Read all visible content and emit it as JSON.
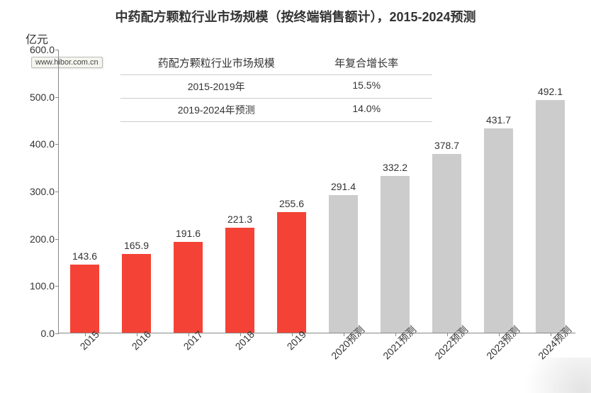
{
  "title": "中药配方颗粒行业市场规模（按终端销售额计），2015-2024预测",
  "y_unit": "亿元",
  "watermark_tooltip": "www.hibor.com.cn",
  "chart": {
    "type": "bar",
    "background_color": "#ffffff",
    "axis_color": "#888888",
    "ylim": [
      0,
      600
    ],
    "ytick_step": 100,
    "yticks": [
      "0.0",
      "100.0",
      "200.0",
      "300.0",
      "400.0",
      "500.0",
      "600.0"
    ],
    "y_fontsize": 14,
    "bar_width_ratio": 0.55,
    "label_fontsize": 14,
    "label_color": "#333333",
    "x_label_rotation": -45,
    "colors": {
      "actual": "#f44336",
      "forecast": "#cccccc"
    },
    "categories": [
      "2015",
      "2016",
      "2017",
      "2018",
      "2019",
      "2020预测",
      "2021预测",
      "2022预测",
      "2023预测",
      "2024预测"
    ],
    "values": [
      143.6,
      165.9,
      191.6,
      221.3,
      255.6,
      291.4,
      332.2,
      378.7,
      431.7,
      492.1
    ],
    "series_kind": [
      "actual",
      "actual",
      "actual",
      "actual",
      "actual",
      "forecast",
      "forecast",
      "forecast",
      "forecast",
      "forecast"
    ]
  },
  "legend": {
    "header_col1": "药配方颗粒行业市场规模",
    "header_col2": "年复合增长率",
    "header_fontsize": 15,
    "row_fontsize": 14,
    "border_color": "#cccccc",
    "rows": [
      {
        "period": "2015-2019年",
        "cagr": "15.5%"
      },
      {
        "period": "2019-2024年预测",
        "cagr": "14.0%"
      }
    ]
  }
}
